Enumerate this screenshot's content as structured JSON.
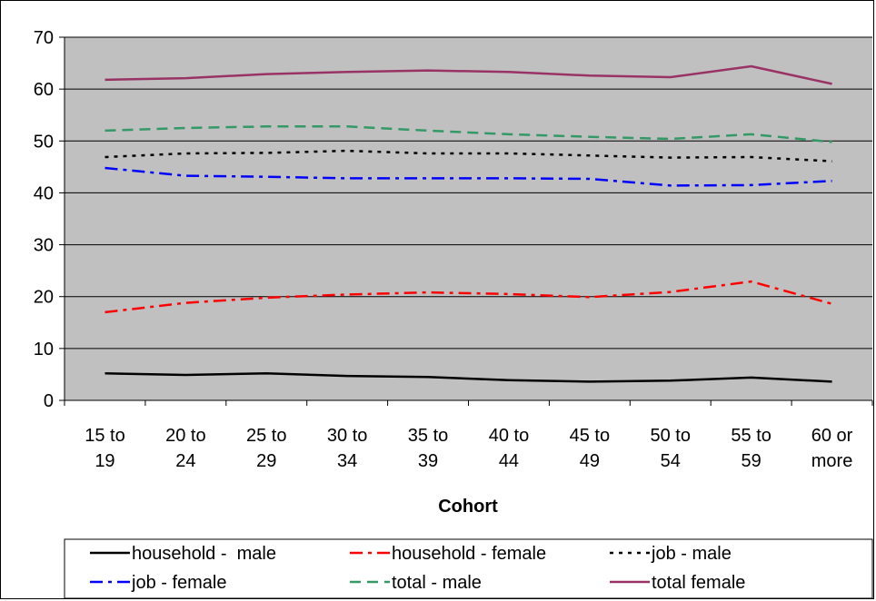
{
  "chart_data": {
    "type": "line",
    "title": "",
    "xlabel": "Cohort",
    "ylabel": "",
    "ylim": [
      0,
      70
    ],
    "yticks": [
      0,
      10,
      20,
      30,
      40,
      50,
      60,
      70
    ],
    "grid": "horizontal",
    "plot_background": "#c0c0c0",
    "legend_position": "bottom",
    "categories": [
      [
        "15 to",
        "19"
      ],
      [
        "20 to",
        "24"
      ],
      [
        "25 to",
        "29"
      ],
      [
        "30 to",
        "34"
      ],
      [
        "35 to",
        "39"
      ],
      [
        "40 to",
        "44"
      ],
      [
        "45 to",
        "49"
      ],
      [
        "50 to",
        "54"
      ],
      [
        "55 to",
        "59"
      ],
      [
        "60 or",
        "more"
      ]
    ],
    "series": [
      {
        "name": "household -  male",
        "color": "#000000",
        "dash": "solid",
        "values": [
          5.2,
          4.9,
          5.2,
          4.7,
          4.5,
          3.9,
          3.6,
          3.8,
          4.4,
          3.6
        ]
      },
      {
        "name": "household - female",
        "color": "#ff0000",
        "dash": "dash-dot",
        "values": [
          17.0,
          18.8,
          19.8,
          20.4,
          20.8,
          20.5,
          19.9,
          20.9,
          22.9,
          18.6
        ]
      },
      {
        "name": "job - male",
        "color": "#000000",
        "dash": "dotted",
        "values": [
          46.9,
          47.6,
          47.7,
          48.1,
          47.6,
          47.6,
          47.2,
          46.8,
          46.9,
          46.1
        ]
      },
      {
        "name": "job - female",
        "color": "#0000ff",
        "dash": "dash-dot",
        "values": [
          44.8,
          43.3,
          43.1,
          42.8,
          42.8,
          42.8,
          42.7,
          41.4,
          41.5,
          42.3
        ]
      },
      {
        "name": "total - male",
        "color": "#339966",
        "dash": "dashed",
        "values": [
          52.0,
          52.5,
          52.8,
          52.8,
          52.0,
          51.3,
          50.8,
          50.4,
          51.3,
          49.8
        ]
      },
      {
        "name": "total female",
        "color": "#993366",
        "dash": "solid",
        "values": [
          61.8,
          62.1,
          62.9,
          63.3,
          63.6,
          63.3,
          62.6,
          62.3,
          64.4,
          61.0
        ]
      }
    ]
  }
}
